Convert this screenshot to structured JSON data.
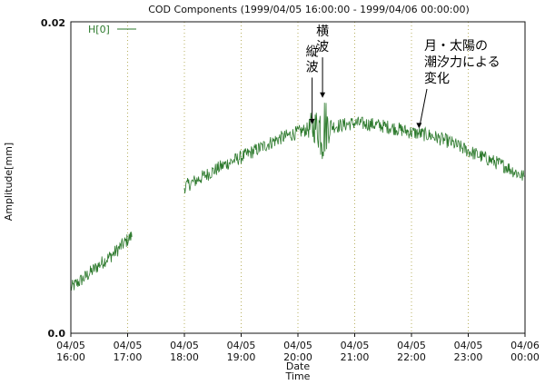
{
  "chart_data": {
    "type": "line",
    "title": "COD Components (1999/04/05 16:00:00 - 1999/04/06 00:00:00)",
    "xlabel": "Date\nTime",
    "ylabel": "Amplitude[mm]",
    "ylim": [
      0.0,
      0.02
    ],
    "y_ticks": [
      "0.0",
      "0.02"
    ],
    "xlim": [
      "1999-04-05 16:00",
      "1999-04-06 00:00"
    ],
    "x_ticks": [
      {
        "value": "1999-04-05 16:00",
        "line1": "04/05",
        "line2": "16:00"
      },
      {
        "value": "1999-04-05 17:00",
        "line1": "04/05",
        "line2": "17:00"
      },
      {
        "value": "1999-04-05 18:00",
        "line1": "04/05",
        "line2": "18:00"
      },
      {
        "value": "1999-04-05 19:00",
        "line1": "04/05",
        "line2": "19:00"
      },
      {
        "value": "1999-04-05 20:00",
        "line1": "04/05",
        "line2": "20:00"
      },
      {
        "value": "1999-04-05 21:00",
        "line1": "04/05",
        "line2": "21:00"
      },
      {
        "value": "1999-04-05 22:00",
        "line1": "04/05",
        "line2": "22:00"
      },
      {
        "value": "1999-04-05 23:00",
        "line1": "04/05",
        "line2": "23:00"
      },
      {
        "value": "1999-04-06 00:00",
        "line1": "04/06",
        "line2": "00:00"
      }
    ],
    "grid": "vertical dotted at each hour",
    "legend": {
      "position": "top-left",
      "label": "H[0]"
    },
    "series": [
      {
        "name": "H[0]",
        "color": "#2d7a2d",
        "segments": [
          {
            "x": [
              "1999-04-05 16:00",
              "1999-04-05 16:15",
              "1999-04-05 16:30",
              "1999-04-05 16:45",
              "1999-04-05 17:05"
            ],
            "y": [
              0.0029,
              0.0036,
              0.0044,
              0.0051,
              0.0063
            ]
          },
          {
            "x": [
              "1999-04-05 18:00",
              "1999-04-05 18:15",
              "1999-04-05 18:30",
              "1999-04-05 18:45",
              "1999-04-05 19:00",
              "1999-04-05 19:20",
              "1999-04-05 19:40",
              "1999-04-05 20:00",
              "1999-04-05 20:20",
              "1999-04-05 20:40",
              "1999-04-05 21:00",
              "1999-04-05 21:20",
              "1999-04-05 21:40",
              "1999-04-05 22:00",
              "1999-04-05 22:20",
              "1999-04-05 22:40",
              "1999-04-05 23:00",
              "1999-04-05 23:20",
              "1999-04-05 23:40",
              "1999-04-06 00:00"
            ],
            "y": [
              0.0094,
              0.0099,
              0.0104,
              0.0109,
              0.0113,
              0.0119,
              0.0125,
              0.0129,
              0.0133,
              0.0133,
              0.0135,
              0.0134,
              0.0132,
              0.0129,
              0.0127,
              0.0123,
              0.0117,
              0.0112,
              0.0107,
              0.01
            ]
          }
        ]
      }
    ],
    "annotations": [
      {
        "text_lines": [
          "縦",
          "波"
        ],
        "x": "1999-04-05 20:15",
        "y": 0.0133,
        "label_y": 0.017
      },
      {
        "text_lines": [
          "横",
          "波"
        ],
        "x": "1999-04-05 20:26",
        "y": 0.015,
        "label_y": 0.0183
      },
      {
        "text_lines": [
          "月・太陽の",
          "潮汐力による",
          "変化"
        ],
        "x": "1999-04-05 22:08",
        "y": 0.0131,
        "label_y": 0.0175
      }
    ]
  }
}
